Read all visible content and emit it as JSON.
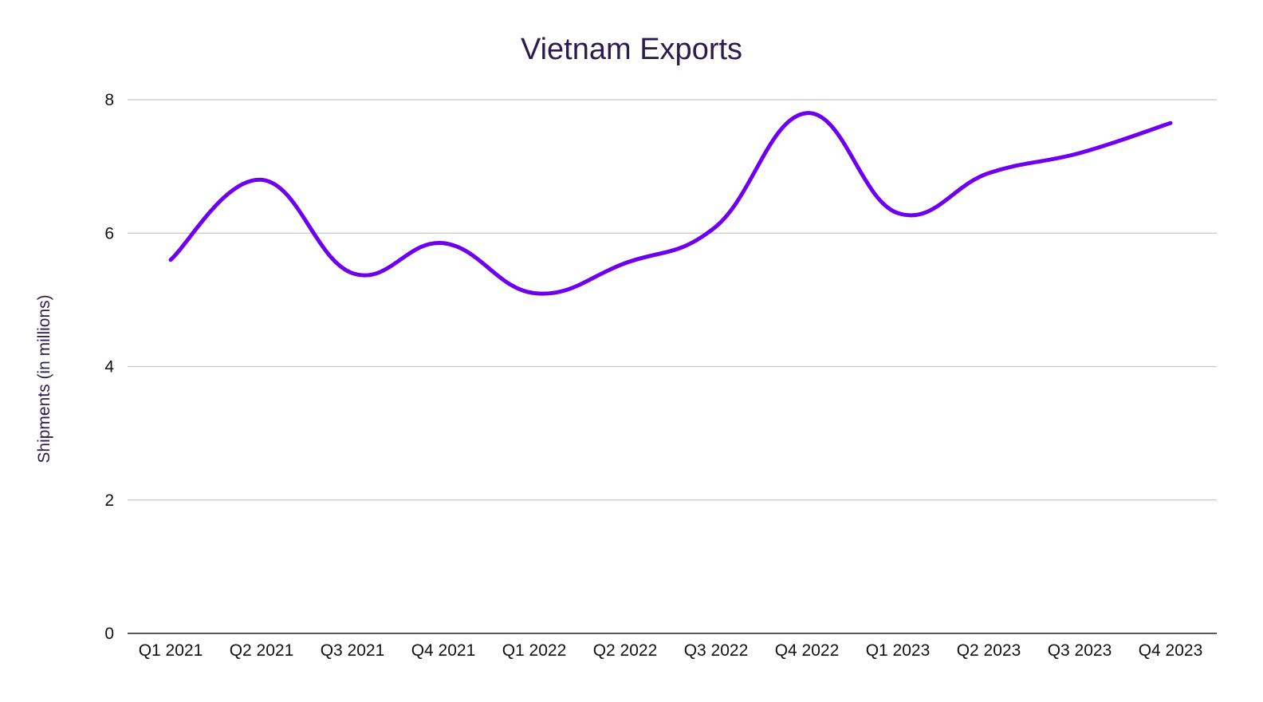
{
  "chart_data": {
    "type": "line",
    "title": "Vietnam Exports",
    "xlabel": "",
    "ylabel": "Shipments (in millions)",
    "categories": [
      "Q1 2021",
      "Q2 2021",
      "Q3 2021",
      "Q4 2021",
      "Q1 2022",
      "Q2 2022",
      "Q3 2022",
      "Q4 2022",
      "Q1 2023",
      "Q2 2023",
      "Q3 2023",
      "Q4 2023"
    ],
    "series": [
      {
        "values": [
          5.6,
          6.8,
          5.4,
          5.85,
          5.1,
          5.55,
          6.1,
          7.8,
          6.3,
          6.9,
          7.2,
          7.65
        ],
        "color": "#6f00ee"
      }
    ],
    "ylim": [
      0,
      8
    ],
    "yticks": [
      "0",
      "2",
      "4",
      "6",
      "8"
    ],
    "grid": true,
    "smooth": true,
    "legend": "none"
  }
}
